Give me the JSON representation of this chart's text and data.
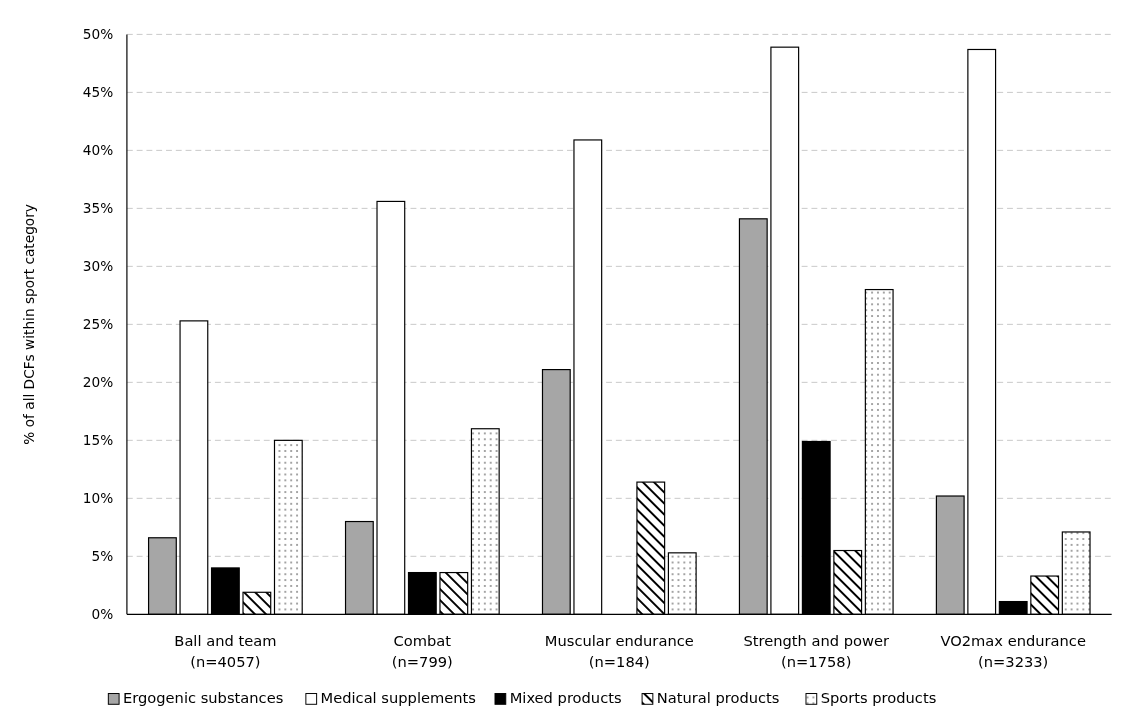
{
  "chart_data": {
    "type": "bar",
    "ylabel": "% of all DCFs within sport category",
    "categories": [
      "Ball and team\n(n=4057)",
      "Combat\n(n=799)",
      "Muscular endurance\n(n=184)",
      "Strength and power\n(n=1758)",
      "VO2max endurance\n(n=3233)"
    ],
    "series": [
      {
        "name": "Ergogenic substances",
        "color": "#a6a6a6",
        "values": [
          6.6,
          8.0,
          21.1,
          34.1,
          10.2
        ]
      },
      {
        "name": "Medical supplements",
        "color": "#ffffff",
        "values": [
          25.3,
          35.6,
          40.9,
          48.9,
          48.7
        ]
      },
      {
        "name": "Mixed products",
        "color": "#000000",
        "values": [
          4.0,
          3.6,
          0,
          14.9,
          1.1
        ]
      },
      {
        "name": "Natural products",
        "color": "#000000",
        "values": [
          1.9,
          3.6,
          11.4,
          5.5,
          3.3
        ]
      },
      {
        "name": "Sports products",
        "color": "#000000",
        "values": [
          15.0,
          16.0,
          5.3,
          28.0,
          7.1
        ]
      }
    ],
    "ylim": [
      0,
      50
    ],
    "yticks": [
      {
        "value": 0,
        "label": "0%"
      },
      {
        "value": 5,
        "label": "5%"
      },
      {
        "value": 10,
        "label": "10%"
      },
      {
        "value": 15,
        "label": "15%"
      },
      {
        "value": 20,
        "label": "20%"
      },
      {
        "value": 25,
        "label": "25%"
      },
      {
        "value": 30,
        "label": "30%"
      },
      {
        "value": 35,
        "label": "35%"
      },
      {
        "value": 40,
        "label": "40%"
      },
      {
        "value": 45,
        "label": "45%"
      },
      {
        "value": 50,
        "label": "50%"
      }
    ],
    "grid": "y",
    "legend": "bottom"
  }
}
